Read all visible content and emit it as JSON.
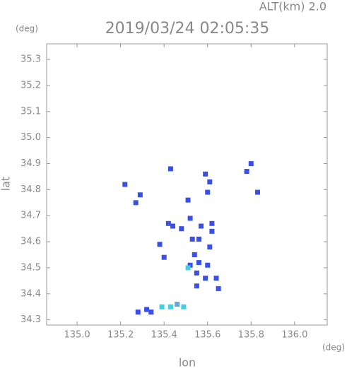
{
  "chart_data": {
    "type": "scatter",
    "header": "ALT(km) 2.0",
    "title": "2019/03/24 02:05:35",
    "y_unit": "(deg)",
    "x_unit": "(deg)",
    "x_label": "lon",
    "y_label": "lat",
    "x": [
      135.43,
      135.59,
      135.78,
      135.8,
      135.61,
      135.22,
      135.29,
      135.27,
      135.51,
      135.83,
      135.6,
      135.52,
      135.44,
      135.42,
      135.48,
      135.62,
      135.62,
      135.57,
      135.38,
      135.53,
      135.56,
      135.61,
      135.4,
      135.54,
      135.52,
      135.56,
      135.51,
      135.6,
      135.64,
      135.55,
      135.59,
      135.55,
      135.65,
      135.49,
      135.43,
      135.39,
      135.46,
      135.32,
      135.28,
      135.34
    ],
    "y": [
      34.88,
      34.86,
      34.87,
      34.9,
      34.83,
      34.82,
      34.78,
      34.75,
      34.76,
      34.79,
      34.79,
      34.69,
      34.66,
      34.67,
      34.65,
      34.67,
      34.64,
      34.66,
      34.59,
      34.61,
      34.61,
      34.58,
      34.54,
      34.55,
      34.51,
      34.52,
      34.5,
      34.51,
      34.46,
      34.48,
      34.46,
      34.43,
      34.42,
      34.35,
      34.35,
      34.35,
      34.36,
      34.34,
      34.33,
      34.33
    ],
    "colors": [
      "#3a4fe6",
      "#3a4fe6",
      "#3a4fe6",
      "#3a4fe6",
      "#3a4fe6",
      "#3a4fe6",
      "#3a4fe6",
      "#3a4fe6",
      "#3a4fe6",
      "#3a4fe6",
      "#3a4fe6",
      "#3a4fe6",
      "#3a4fe6",
      "#3a4fe6",
      "#3a4fe6",
      "#3a4fe6",
      "#3a4fe6",
      "#3a4fe6",
      "#3a4fe6",
      "#3a4fe6",
      "#3a4fe6",
      "#3a4fe6",
      "#3a4fe6",
      "#3a4fe6",
      "#3a4fe6",
      "#3a4fe6",
      "#3fd0e8",
      "#3a4fe6",
      "#3a4fe6",
      "#3a4fe6",
      "#3a4fe6",
      "#3a4fe6",
      "#3a4fe6",
      "#3fd0e8",
      "#3fd0e8",
      "#3fd0e8",
      "#5aa8ee",
      "#3a4fe6",
      "#3a4fe6",
      "#3a4fe6"
    ],
    "xlim": [
      134.86,
      136.15
    ],
    "ylim": [
      34.28,
      35.36
    ],
    "xticks": [
      {
        "value": 135.0,
        "label": "135.0"
      },
      135.2,
      135.4,
      135.6,
      135.8,
      {
        "value": 136.0,
        "label": "136.0"
      }
    ],
    "yticks": [
      34.3,
      34.4,
      34.5,
      34.6,
      34.7,
      34.8,
      34.9,
      {
        "value": 35.0,
        "label": "35.0"
      },
      35.1,
      35.2,
      35.3
    ]
  }
}
